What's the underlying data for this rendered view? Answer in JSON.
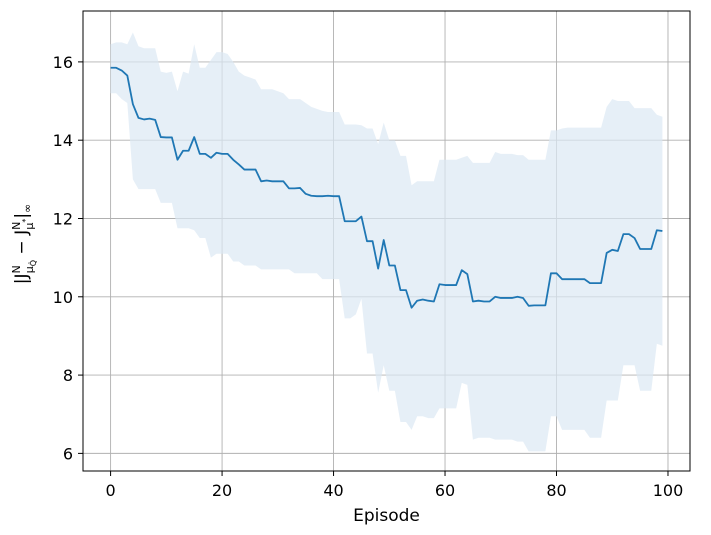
{
  "chart_data": {
    "type": "line",
    "title": "",
    "xlabel": "Episode",
    "ylabel": "|J^N_{μ_Q̂} − J^N_{μ*}|∞",
    "ylabel_parts": {
      "open": "|J",
      "sup1": "N",
      "sub1": "μ",
      "subsub1": "Q̂",
      "mid": " − J",
      "sup2": "N",
      "sub2": "μ",
      "subsup2": "*",
      "close": "|",
      "close_sub": "∞"
    },
    "xlim": [
      -4.95,
      103.95
    ],
    "ylim": [
      5.55,
      17.3
    ],
    "xticks": [
      0,
      20,
      40,
      60,
      80,
      100
    ],
    "yticks": [
      6,
      8,
      10,
      12,
      14,
      16
    ],
    "grid": true,
    "line_color": "#1f77b4",
    "band_color": "#dce8f4",
    "x": [
      0,
      1,
      2,
      3,
      4,
      5,
      6,
      7,
      8,
      9,
      10,
      11,
      12,
      13,
      14,
      15,
      16,
      17,
      18,
      19,
      20,
      21,
      22,
      23,
      24,
      25,
      26,
      27,
      28,
      29,
      30,
      31,
      32,
      33,
      34,
      35,
      36,
      37,
      38,
      39,
      40,
      41,
      42,
      43,
      44,
      45,
      46,
      47,
      48,
      49,
      50,
      51,
      52,
      53,
      54,
      55,
      56,
      57,
      58,
      59,
      60,
      61,
      62,
      63,
      64,
      65,
      66,
      67,
      68,
      69,
      70,
      71,
      72,
      73,
      74,
      75,
      76,
      77,
      78,
      79,
      80,
      81,
      82,
      83,
      84,
      85,
      86,
      87,
      88,
      89,
      90,
      91,
      92,
      93,
      94,
      95,
      96,
      97,
      98,
      99
    ],
    "series": [
      {
        "values": [
          15.85,
          15.85,
          15.78,
          15.65,
          14.92,
          14.57,
          14.53,
          14.55,
          14.52,
          14.08,
          14.07,
          14.07,
          13.5,
          13.73,
          13.73,
          14.08,
          13.65,
          13.65,
          13.55,
          13.68,
          13.65,
          13.65,
          13.5,
          13.38,
          13.25,
          13.25,
          13.25,
          12.95,
          12.97,
          12.95,
          12.95,
          12.95,
          12.77,
          12.77,
          12.78,
          12.63,
          12.58,
          12.57,
          12.57,
          12.58,
          12.57,
          12.57,
          11.93,
          11.93,
          11.93,
          12.05,
          11.42,
          11.42,
          10.72,
          11.45,
          10.8,
          10.8,
          10.17,
          10.17,
          9.72,
          9.9,
          9.93,
          9.9,
          9.88,
          10.32,
          10.3,
          10.3,
          10.3,
          10.68,
          10.58,
          9.88,
          9.9,
          9.88,
          9.88,
          10.0,
          9.97,
          9.97,
          9.97,
          10.0,
          9.97,
          9.77,
          9.78,
          9.78,
          9.78,
          10.6,
          10.6,
          10.45,
          10.45,
          10.45,
          10.45,
          10.45,
          10.35,
          10.35,
          10.35,
          11.12,
          11.2,
          11.17,
          11.6,
          11.6,
          11.5,
          11.22,
          11.22,
          11.22,
          11.7,
          11.68
        ]
      }
    ],
    "band_upper": [
      16.45,
      16.5,
      16.5,
      16.45,
      16.75,
      16.4,
      16.35,
      16.35,
      16.35,
      15.75,
      15.72,
      15.75,
      15.25,
      15.75,
      15.7,
      16.45,
      15.85,
      15.85,
      16.05,
      16.25,
      16.25,
      16.2,
      16.0,
      15.75,
      15.65,
      15.6,
      15.55,
      15.3,
      15.3,
      15.3,
      15.25,
      15.2,
      15.05,
      15.05,
      15.05,
      14.95,
      14.85,
      14.8,
      14.75,
      14.72,
      14.72,
      14.72,
      14.4,
      14.4,
      14.4,
      14.38,
      14.3,
      14.3,
      13.9,
      14.45,
      14.0,
      14.0,
      13.6,
      13.6,
      12.85,
      12.95,
      12.95,
      12.95,
      12.95,
      13.5,
      13.5,
      13.5,
      13.5,
      13.55,
      13.6,
      13.42,
      13.42,
      13.42,
      13.42,
      13.7,
      13.65,
      13.65,
      13.65,
      13.62,
      13.62,
      13.5,
      13.5,
      13.5,
      13.5,
      14.25,
      14.25,
      14.3,
      14.32,
      14.32,
      14.32,
      14.32,
      14.32,
      14.32,
      14.32,
      14.85,
      15.05,
      15.0,
      15.0,
      15.0,
      14.82,
      14.82,
      14.82,
      14.82,
      14.65,
      14.6
    ],
    "band_lower": [
      15.2,
      15.2,
      15.05,
      14.95,
      13.0,
      12.75,
      12.75,
      12.75,
      12.75,
      12.4,
      12.4,
      12.4,
      11.75,
      11.75,
      11.75,
      11.7,
      11.5,
      11.5,
      11.0,
      11.1,
      11.1,
      11.1,
      10.9,
      10.9,
      10.8,
      10.8,
      10.8,
      10.7,
      10.7,
      10.7,
      10.7,
      10.7,
      10.7,
      10.6,
      10.6,
      10.6,
      10.6,
      10.6,
      10.45,
      10.45,
      10.45,
      10.45,
      9.45,
      9.45,
      9.55,
      9.95,
      8.55,
      8.55,
      7.55,
      8.25,
      7.6,
      7.6,
      6.8,
      6.8,
      6.6,
      6.95,
      6.95,
      6.9,
      6.9,
      7.15,
      7.15,
      7.15,
      7.15,
      7.8,
      7.75,
      6.35,
      6.4,
      6.4,
      6.4,
      6.35,
      6.35,
      6.35,
      6.35,
      6.3,
      6.3,
      6.05,
      6.05,
      6.05,
      6.05,
      6.95,
      6.95,
      6.6,
      6.6,
      6.6,
      6.6,
      6.6,
      6.4,
      6.4,
      6.4,
      7.35,
      7.35,
      7.35,
      8.25,
      8.25,
      8.25,
      7.6,
      7.6,
      7.6,
      8.8,
      8.75
    ]
  }
}
